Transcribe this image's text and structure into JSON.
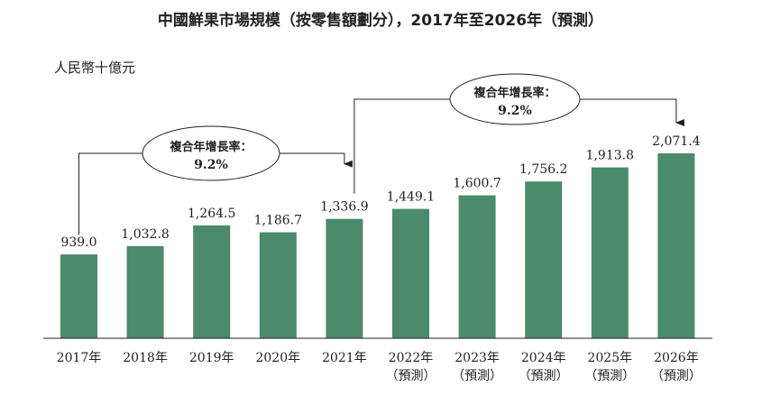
{
  "chart_data": {
    "type": "bar",
    "title": "中國鮮果市場規模（按零售額劃分），2017年至2026年（預測）",
    "ylabel": "人民幣十億元",
    "categories": [
      "2017年",
      "2018年",
      "2019年",
      "2020年",
      "2021年",
      "2022年",
      "2023年",
      "2024年",
      "2025年",
      "2026年"
    ],
    "category_notes": [
      "",
      "",
      "",
      "",
      "",
      "（預測）",
      "（預測）",
      "（預測）",
      "（預測）",
      "（預測）"
    ],
    "values": [
      939.0,
      1032.8,
      1264.5,
      1186.7,
      1336.9,
      1449.1,
      1600.7,
      1756.2,
      1913.8,
      2071.4
    ],
    "value_labels": [
      "939.0",
      "1,032.8",
      "1,264.5",
      "1,186.7",
      "1,336.9",
      "1,449.1",
      "1,600.7",
      "1,756.2",
      "1,913.8",
      "2,071.4"
    ],
    "ylim": [
      0,
      2071.4
    ],
    "colors": {
      "bar": "#4b8a6b"
    },
    "annotations": [
      {
        "label": "複合年增長率：",
        "value": "9.2%",
        "from_index": 0,
        "to_index": 4
      },
      {
        "label": "複合年增長率：",
        "value": "9.2%",
        "from_index": 4,
        "to_index": 9
      }
    ]
  }
}
